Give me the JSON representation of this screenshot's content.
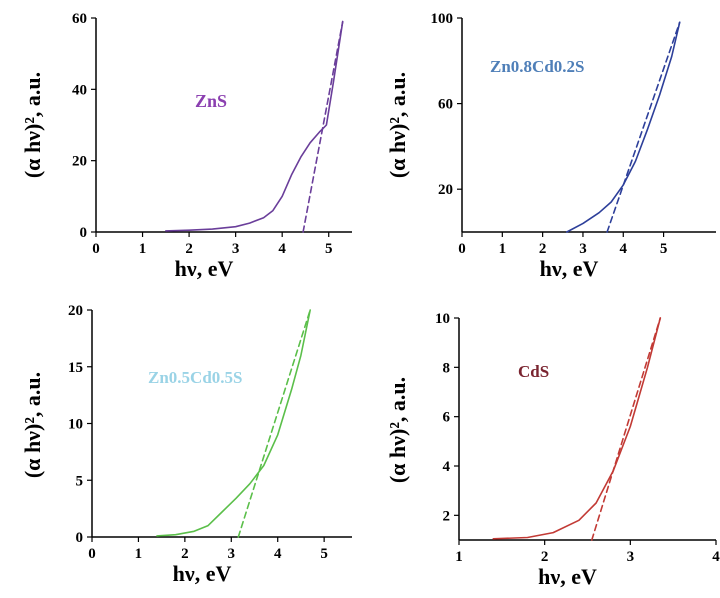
{
  "chart_data": [
    {
      "type": "line",
      "title": "",
      "annotation": "ZnS",
      "annotation_color": "#8b3fb0",
      "series_color": "#6a3e9a",
      "xlabel": "hν, eV",
      "ylabel": "(α hν)², a.u.",
      "xlim": [
        0,
        5.5
      ],
      "ylim": [
        0,
        60
      ],
      "xticks": [
        "0",
        "1",
        "2",
        "3",
        "4",
        "5"
      ],
      "xtick_values": [
        0,
        1,
        2,
        3,
        4,
        5
      ],
      "yticks": [
        "0",
        "20",
        "40",
        "60"
      ],
      "ytick_values": [
        0,
        20,
        40,
        60
      ],
      "series": [
        {
          "x": [
            1.5,
            2.0,
            2.5,
            3.0,
            3.3,
            3.6,
            3.8,
            4.0,
            4.2,
            4.4,
            4.6,
            4.8,
            4.95,
            5.1,
            5.3
          ],
          "y": [
            0.3,
            0.5,
            0.8,
            1.5,
            2.5,
            4,
            6,
            10,
            16,
            21,
            25,
            28,
            30,
            42,
            59
          ]
        },
        {
          "dashed": true,
          "x": [
            4.45,
            5.3
          ],
          "y": [
            0,
            59
          ]
        }
      ]
    },
    {
      "type": "line",
      "title": "",
      "annotation": "Zn0.8Cd0.2S",
      "annotation_color": "#4f7fb8",
      "series_color": "#2d3f9a",
      "xlabel": "hν, eV",
      "ylabel": "(α hν)², a.u.",
      "xlim": [
        0,
        6.3
      ],
      "ylim": [
        0,
        100
      ],
      "xticks": [
        "0",
        "1",
        "2",
        "3",
        "4",
        "5"
      ],
      "xtick_values": [
        0,
        1,
        2,
        3,
        4,
        5
      ],
      "yticks": [
        "20",
        "60",
        "100"
      ],
      "ytick_values": [
        20,
        60,
        100
      ],
      "series": [
        {
          "x": [
            2.6,
            3.0,
            3.4,
            3.7,
            4.0,
            4.3,
            4.6,
            4.9,
            5.2,
            5.4
          ],
          "y": [
            0,
            4,
            9,
            14,
            22,
            33,
            48,
            64,
            82,
            98
          ]
        },
        {
          "dashed": true,
          "x": [
            3.6,
            5.4
          ],
          "y": [
            0,
            98
          ]
        }
      ]
    },
    {
      "type": "line",
      "title": "",
      "annotation": "Zn0.5Cd0.5S",
      "annotation_color": "#9ad3e6",
      "series_color": "#5bbf4a",
      "xlabel": "hν, eV",
      "ylabel": "(α hν)², a.u.",
      "xlim": [
        0,
        5.6
      ],
      "ylim": [
        0,
        20
      ],
      "xticks": [
        "0",
        "1",
        "2",
        "3",
        "4",
        "5"
      ],
      "xtick_values": [
        0,
        1,
        2,
        3,
        4,
        5
      ],
      "yticks": [
        "0",
        "5",
        "10",
        "15",
        "20"
      ],
      "ytick_values": [
        0,
        5,
        10,
        15,
        20
      ],
      "series": [
        {
          "x": [
            1.4,
            1.8,
            2.2,
            2.5,
            2.8,
            3.1,
            3.4,
            3.7,
            4.0,
            4.3,
            4.5,
            4.7
          ],
          "y": [
            0.1,
            0.2,
            0.5,
            1.0,
            2.2,
            3.4,
            4.7,
            6.3,
            9.0,
            13.0,
            16.0,
            20.0
          ]
        },
        {
          "dashed": true,
          "x": [
            3.15,
            4.7
          ],
          "y": [
            0,
            20
          ]
        }
      ]
    },
    {
      "type": "line",
      "title": "",
      "annotation": "CdS",
      "annotation_color": "#7a2430",
      "series_color": "#c23a35",
      "xlabel": "hν, eV",
      "ylabel": "(α hν)², a.u.",
      "xlim": [
        1,
        4
      ],
      "ylim": [
        1,
        10
      ],
      "xticks": [
        "1",
        "2",
        "3",
        "4"
      ],
      "xtick_values": [
        1,
        2,
        3,
        4
      ],
      "yticks": [
        "2",
        "4",
        "6",
        "8",
        "10"
      ],
      "ytick_values": [
        2,
        4,
        6,
        8,
        10
      ],
      "series": [
        {
          "x": [
            1.4,
            1.8,
            2.1,
            2.4,
            2.6,
            2.8,
            3.0,
            3.2,
            3.35
          ],
          "y": [
            1.05,
            1.1,
            1.3,
            1.8,
            2.5,
            3.8,
            5.6,
            8.0,
            10.0
          ]
        },
        {
          "dashed": true,
          "x": [
            2.55,
            3.35
          ],
          "y": [
            1.0,
            10.0
          ]
        }
      ]
    }
  ]
}
